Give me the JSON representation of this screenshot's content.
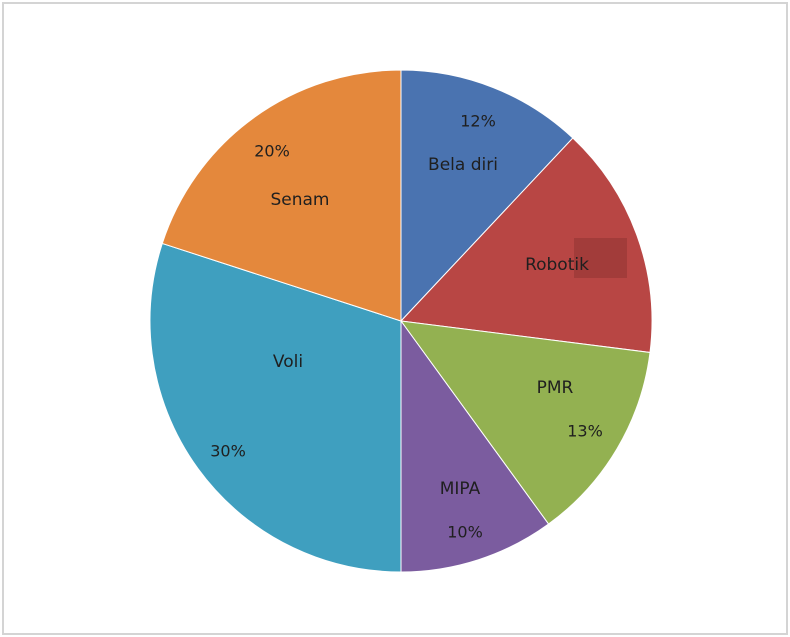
{
  "chart_data": {
    "type": "pie",
    "categories": [
      "Bela diri",
      "Robotik",
      "PMR",
      "MIPA",
      "Voli",
      "Senam"
    ],
    "values": [
      12,
      15,
      13,
      10,
      30,
      20
    ],
    "value_labels": [
      "12%",
      null,
      "13%",
      "10%",
      "30%",
      "20%"
    ],
    "colors": [
      "#4a73b0",
      "#b84644",
      "#93b151",
      "#7b5c9f",
      "#3f9fbf",
      "#e4883c"
    ]
  }
}
